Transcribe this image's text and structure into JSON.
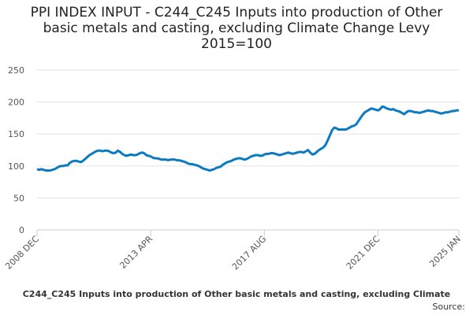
{
  "chart_data": {
    "type": "line",
    "title": "PPI INDEX INPUT - C244_C245 Inputs into production of Other basic metals and casting, excluding Climate Change Levy 2015=100",
    "source_label": "Source:",
    "categories": [
      "2008 DEC",
      null,
      null,
      null,
      null,
      null,
      null,
      null,
      null,
      null,
      null,
      null,
      null,
      null,
      null,
      null,
      null,
      null,
      null,
      null,
      null,
      null,
      null,
      null,
      null,
      null,
      null,
      null,
      null,
      null,
      null,
      null,
      null,
      null,
      null,
      null,
      null,
      null,
      null,
      null,
      null,
      null,
      null,
      null,
      null,
      null,
      null,
      null,
      null,
      null,
      null,
      null,
      "2013 APR",
      null,
      null,
      null,
      null,
      null,
      null,
      null,
      null,
      null,
      null,
      null,
      null,
      null,
      null,
      null,
      null,
      null,
      null,
      null,
      null,
      null,
      null,
      null,
      null,
      null,
      null,
      null,
      null,
      null,
      null,
      null,
      null,
      null,
      null,
      null,
      null,
      null,
      null,
      null,
      null,
      null,
      null,
      null,
      null,
      null,
      null,
      null,
      null,
      null,
      null,
      null,
      "2017 AUG",
      null,
      null,
      null,
      null,
      null,
      null,
      null,
      null,
      null,
      null,
      null,
      null,
      null,
      null,
      null,
      null,
      null,
      null,
      null,
      null,
      null,
      null,
      null,
      null,
      null,
      null,
      null,
      null,
      null,
      null,
      null,
      null,
      null,
      null,
      null,
      null,
      null,
      null,
      null,
      null,
      null,
      null,
      null,
      null,
      null,
      null,
      null,
      null,
      null,
      null,
      null,
      "2021 DEC",
      null,
      null,
      null,
      null,
      null,
      null,
      null,
      null,
      null,
      null,
      null,
      null,
      null,
      null,
      null,
      null,
      null,
      null,
      null,
      null,
      null,
      null,
      null,
      null,
      null,
      null,
      null,
      null,
      null,
      null,
      null,
      null,
      null,
      null,
      null,
      null,
      "2025 JAN"
    ],
    "series": [
      {
        "name": "C244_C245 Inputs into production of Other basic metals and casting, excluding Climate",
        "color": "#0b7bc1",
        "values": [
          95,
          94,
          95,
          94,
          93,
          93,
          93,
          94,
          95,
          97,
          99,
          100,
          100,
          101,
          101,
          105,
          107,
          108,
          108,
          107,
          106,
          108,
          111,
          114,
          117,
          119,
          121,
          123,
          124,
          124,
          123,
          124,
          124,
          123,
          121,
          120,
          121,
          124,
          122,
          119,
          117,
          116,
          117,
          118,
          117,
          117,
          118,
          120,
          121,
          120,
          117,
          116,
          115,
          113,
          112,
          112,
          111,
          110,
          110,
          110,
          109,
          110,
          110,
          110,
          109,
          109,
          108,
          107,
          106,
          104,
          103,
          103,
          102,
          101,
          100,
          98,
          96,
          95,
          94,
          93,
          94,
          95,
          97,
          98,
          99,
          102,
          104,
          106,
          107,
          108,
          110,
          111,
          112,
          112,
          111,
          110,
          111,
          113,
          115,
          116,
          117,
          117,
          116,
          116,
          118,
          119,
          119,
          120,
          120,
          119,
          118,
          117,
          118,
          119,
          120,
          121,
          120,
          119,
          120,
          121,
          122,
          122,
          121,
          123,
          125,
          121,
          118,
          119,
          122,
          125,
          127,
          129,
          133,
          140,
          148,
          156,
          160,
          159,
          157,
          157,
          157,
          157,
          158,
          160,
          162,
          163,
          165,
          170,
          175,
          180,
          184,
          186,
          188,
          190,
          189,
          188,
          187,
          189,
          193,
          192,
          190,
          189,
          188,
          189,
          187,
          186,
          185,
          183,
          181,
          184,
          186,
          186,
          185,
          184,
          184,
          183,
          184,
          185,
          186,
          187,
          186,
          186,
          185,
          184,
          183,
          182,
          183,
          184,
          184,
          185,
          186,
          186,
          187,
          187
        ]
      }
    ],
    "ylim": [
      0,
      250
    ],
    "yticks": [
      0,
      50,
      100,
      150,
      200,
      250
    ],
    "grid": true
  }
}
